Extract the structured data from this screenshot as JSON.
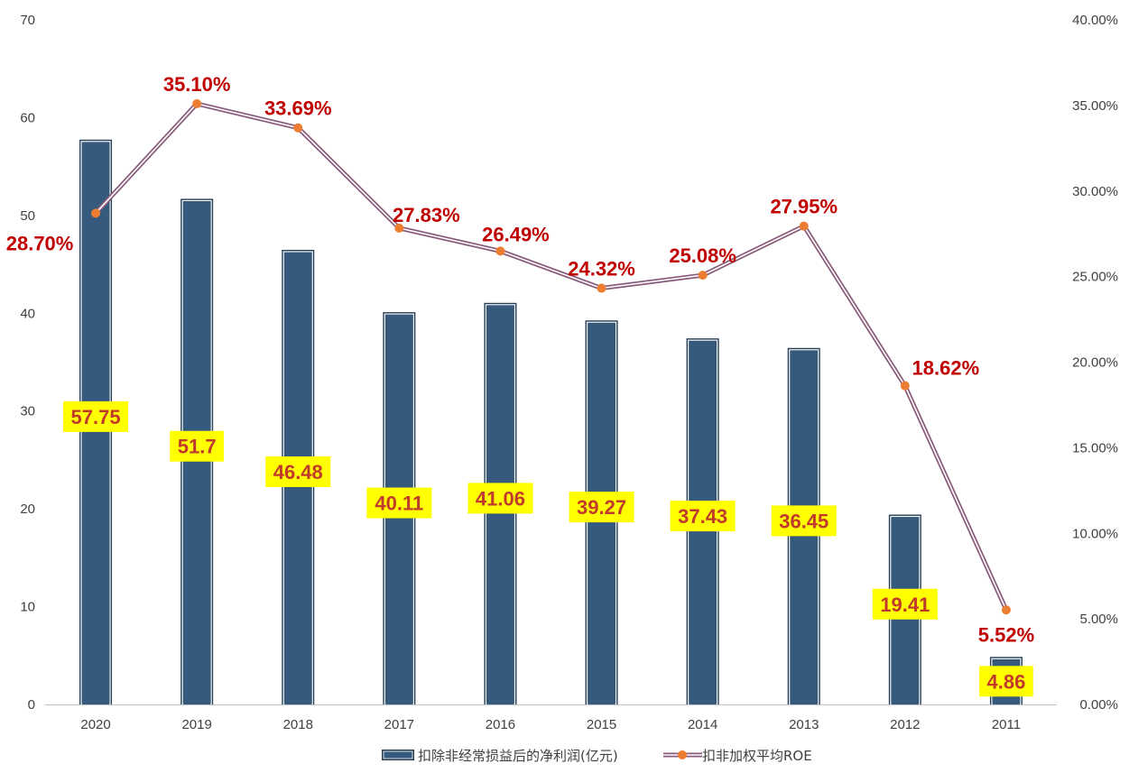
{
  "chart_data": {
    "type": "bar",
    "categories": [
      "2020",
      "2019",
      "2018",
      "2017",
      "2016",
      "2015",
      "2014",
      "2013",
      "2012",
      "2011"
    ],
    "series": [
      {
        "name": "扣除非经常损益后的净利润(亿元)",
        "type": "bar",
        "axis": "left",
        "values": [
          57.75,
          51.7,
          46.48,
          40.11,
          41.06,
          39.27,
          37.43,
          36.45,
          19.41,
          4.86
        ],
        "labels": [
          "57.75",
          "51.7",
          "46.48",
          "40.11",
          "41.06",
          "39.27",
          "37.43",
          "36.45",
          "19.41",
          "4.86"
        ]
      },
      {
        "name": "扣非加权平均ROE",
        "type": "line",
        "axis": "right",
        "values": [
          28.7,
          35.1,
          33.69,
          27.83,
          26.49,
          24.32,
          25.08,
          27.95,
          18.62,
          5.52
        ],
        "labels": [
          "28.70%",
          "35.10%",
          "33.69%",
          "27.83%",
          "26.49%",
          "24.32%",
          "25.08%",
          "27.95%",
          "18.62%",
          "5.52%"
        ]
      }
    ],
    "y_left": {
      "min": 0,
      "max": 70,
      "ticks": [
        "0",
        "10",
        "20",
        "30",
        "40",
        "50",
        "60",
        "70"
      ]
    },
    "y_right": {
      "min": 0,
      "max": 40,
      "ticks": [
        "0.00%",
        "5.00%",
        "10.00%",
        "15.00%",
        "20.00%",
        "25.00%",
        "30.00%",
        "35.00%",
        "40.00%"
      ]
    },
    "legend_position": "bottom-center",
    "grid": false
  },
  "colors": {
    "bar_fill": "#365a7d",
    "bar_outline": "#223d56",
    "line": "#8a5a7a",
    "marker": "#ed7d31",
    "bar_label_bg": "#ffff00",
    "bar_label_text": "#c0392b",
    "line_label_text": "#c00000",
    "axis": "#bfbfbf"
  }
}
